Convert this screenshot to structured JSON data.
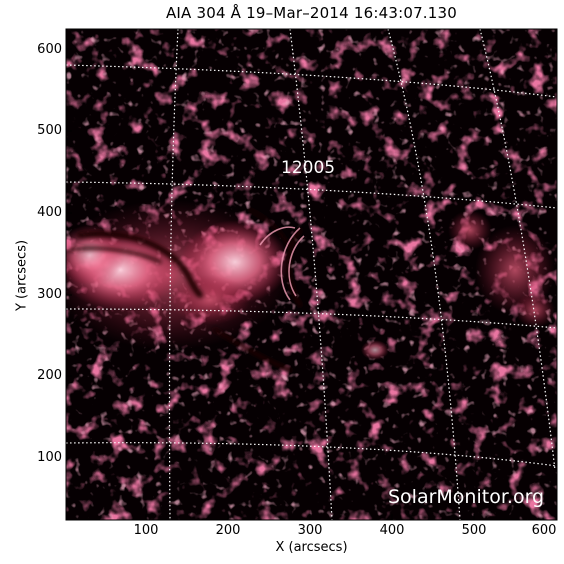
{
  "title": "AIA 304 Å 19–Mar–2014 16:43:07.130",
  "axes": {
    "xlabel": "X (arcsecs)",
    "ylabel": "Y (arcsecs)",
    "xticks": [
      "100",
      "200",
      "300",
      "400",
      "500",
      "600"
    ],
    "yticks": [
      "100",
      "200",
      "300",
      "400",
      "500",
      "600"
    ],
    "xrange": [
      4,
      604
    ],
    "yrange": [
      25,
      625
    ]
  },
  "annotations": {
    "region_label": "12005",
    "credit": "SolarMonitor.org"
  },
  "colors": {
    "background": "#000000",
    "emission": "#d0305c",
    "bright": "#ffc0d0",
    "grid": "#ffffff"
  }
}
